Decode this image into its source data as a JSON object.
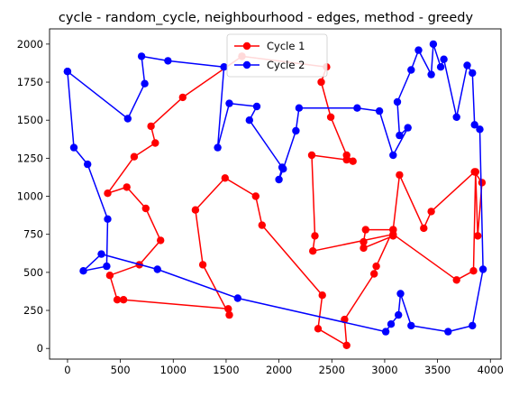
{
  "chart_data": {
    "type": "line",
    "title": "cycle - random_cycle, neighbourhood - edges, method - greedy",
    "xlabel": "",
    "ylabel": "",
    "xlim": [
      -170,
      4100
    ],
    "ylim": [
      -70,
      2100
    ],
    "xticks": [
      0,
      500,
      1000,
      1500,
      2000,
      2500,
      3000,
      3500,
      4000
    ],
    "yticks": [
      0,
      250,
      500,
      750,
      1000,
      1250,
      1500,
      1750,
      2000
    ],
    "grid": false,
    "legend_position": "top-center",
    "series": [
      {
        "name": "Cycle 1",
        "color": "#ff0000",
        "marker": "circle",
        "points": [
          [
            1650,
            1920
          ],
          [
            1090,
            1650
          ],
          [
            790,
            1460
          ],
          [
            830,
            1350
          ],
          [
            630,
            1260
          ],
          [
            380,
            1020
          ],
          [
            560,
            1060
          ],
          [
            740,
            920
          ],
          [
            880,
            710
          ],
          [
            680,
            550
          ],
          [
            400,
            480
          ],
          [
            470,
            320
          ],
          [
            530,
            320
          ],
          [
            1520,
            260
          ],
          [
            1530,
            220
          ],
          [
            1280,
            550
          ],
          [
            1210,
            910
          ],
          [
            1490,
            1120
          ],
          [
            1780,
            1000
          ],
          [
            1840,
            810
          ],
          [
            2410,
            350
          ],
          [
            2370,
            130
          ],
          [
            2640,
            20
          ],
          [
            2620,
            190
          ],
          [
            2900,
            490
          ],
          [
            2920,
            540
          ],
          [
            3080,
            780
          ],
          [
            3080,
            740
          ],
          [
            2800,
            660
          ],
          [
            2800,
            700
          ],
          [
            2820,
            780
          ],
          [
            3080,
            780
          ],
          [
            3140,
            1140
          ],
          [
            3370,
            790
          ],
          [
            3440,
            900
          ],
          [
            3850,
            1160
          ],
          [
            3920,
            1090
          ],
          [
            3880,
            740
          ],
          [
            3860,
            1160
          ],
          [
            3840,
            510
          ],
          [
            3680,
            450
          ],
          [
            3080,
            750
          ],
          [
            2320,
            640
          ],
          [
            2340,
            740
          ],
          [
            2310,
            1270
          ],
          [
            2640,
            1240
          ],
          [
            2700,
            1230
          ],
          [
            2640,
            1270
          ],
          [
            2490,
            1520
          ],
          [
            2400,
            1750
          ],
          [
            2450,
            1850
          ],
          [
            1650,
            1920
          ]
        ]
      },
      {
        "name": "Cycle 2",
        "color": "#0000ff",
        "marker": "circle",
        "points": [
          [
            0,
            1820
          ],
          [
            60,
            1320
          ],
          [
            190,
            1210
          ],
          [
            380,
            850
          ],
          [
            370,
            540
          ],
          [
            150,
            510
          ],
          [
            320,
            620
          ],
          [
            850,
            520
          ],
          [
            1610,
            330
          ],
          [
            3010,
            110
          ],
          [
            3060,
            160
          ],
          [
            3130,
            220
          ],
          [
            3150,
            360
          ],
          [
            3250,
            150
          ],
          [
            3600,
            110
          ],
          [
            3830,
            150
          ],
          [
            3930,
            520
          ],
          [
            3900,
            1440
          ],
          [
            3850,
            1470
          ],
          [
            3830,
            1810
          ],
          [
            3780,
            1860
          ],
          [
            3680,
            1520
          ],
          [
            3560,
            1900
          ],
          [
            3530,
            1850
          ],
          [
            3460,
            2000
          ],
          [
            3440,
            1800
          ],
          [
            3320,
            1960
          ],
          [
            3250,
            1830
          ],
          [
            3120,
            1620
          ],
          [
            3140,
            1400
          ],
          [
            3220,
            1450
          ],
          [
            3080,
            1270
          ],
          [
            2950,
            1560
          ],
          [
            2740,
            1580
          ],
          [
            2190,
            1580
          ],
          [
            2160,
            1430
          ],
          [
            2040,
            1180
          ],
          [
            2000,
            1110
          ],
          [
            2030,
            1190
          ],
          [
            1720,
            1500
          ],
          [
            1790,
            1590
          ],
          [
            1530,
            1610
          ],
          [
            1420,
            1320
          ],
          [
            1480,
            1850
          ],
          [
            950,
            1890
          ],
          [
            700,
            1920
          ],
          [
            730,
            1740
          ],
          [
            570,
            1510
          ],
          [
            0,
            1820
          ]
        ]
      }
    ]
  }
}
